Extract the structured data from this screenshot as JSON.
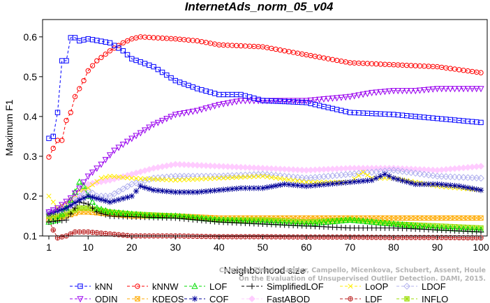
{
  "chart_data": {
    "type": "line",
    "title": "InternetAds_norm_05_v04",
    "xlabel": "Neighborhood size",
    "ylabel": "Maximum F1",
    "xlim": [
      1,
      100
    ],
    "ylim": [
      0.07,
      0.64
    ],
    "xticks": [
      1,
      10,
      20,
      30,
      40,
      50,
      60,
      70,
      80,
      90,
      100
    ],
    "yticks": [
      0.1,
      0.2,
      0.3,
      0.4,
      0.5,
      0.6
    ],
    "grid": false,
    "legend_position": "bottom",
    "watermark": [
      "Campos, Zimek, Sander, Campello, Micenkova, Schubert, Assent, Houle",
      "On the Evaluation of Unsupervised Outlier Detection. DAMI, 2015."
    ],
    "series": [
      {
        "name": "kNN",
        "color": "#0000ff",
        "marker": "square",
        "points": [
          [
            1,
            0.345
          ],
          [
            2,
            0.35
          ],
          [
            3,
            0.41
          ],
          [
            4,
            0.54
          ],
          [
            5,
            0.54
          ],
          [
            6,
            0.598
          ],
          [
            7,
            0.598
          ],
          [
            8,
            0.59
          ],
          [
            10,
            0.595
          ],
          [
            15,
            0.585
          ],
          [
            18,
            0.565
          ],
          [
            20,
            0.545
          ],
          [
            25,
            0.525
          ],
          [
            30,
            0.49
          ],
          [
            35,
            0.47
          ],
          [
            40,
            0.455
          ],
          [
            45,
            0.455
          ],
          [
            50,
            0.44
          ],
          [
            60,
            0.435
          ],
          [
            70,
            0.41
          ],
          [
            80,
            0.405
          ],
          [
            90,
            0.395
          ],
          [
            100,
            0.385
          ]
        ]
      },
      {
        "name": "kNNW",
        "color": "#ff0000",
        "marker": "circle",
        "points": [
          [
            1,
            0.298
          ],
          [
            2,
            0.32
          ],
          [
            3,
            0.34
          ],
          [
            4,
            0.34
          ],
          [
            5,
            0.39
          ],
          [
            6,
            0.41
          ],
          [
            7,
            0.45
          ],
          [
            8,
            0.47
          ],
          [
            9,
            0.49
          ],
          [
            10,
            0.515
          ],
          [
            12,
            0.54
          ],
          [
            15,
            0.565
          ],
          [
            18,
            0.585
          ],
          [
            20,
            0.595
          ],
          [
            22,
            0.6
          ],
          [
            25,
            0.598
          ],
          [
            30,
            0.595
          ],
          [
            35,
            0.59
          ],
          [
            40,
            0.58
          ],
          [
            50,
            0.575
          ],
          [
            60,
            0.555
          ],
          [
            70,
            0.535
          ],
          [
            80,
            0.53
          ],
          [
            90,
            0.525
          ],
          [
            100,
            0.51
          ]
        ]
      },
      {
        "name": "LOF",
        "color": "#00dd00",
        "marker": "triangle-up",
        "points": [
          [
            1,
            0.135
          ],
          [
            3,
            0.14
          ],
          [
            5,
            0.17
          ],
          [
            7,
            0.21
          ],
          [
            8,
            0.235
          ],
          [
            9,
            0.225
          ],
          [
            10,
            0.2
          ],
          [
            12,
            0.17
          ],
          [
            15,
            0.16
          ],
          [
            20,
            0.155
          ],
          [
            25,
            0.15
          ],
          [
            30,
            0.15
          ],
          [
            40,
            0.14
          ],
          [
            50,
            0.135
          ],
          [
            60,
            0.13
          ],
          [
            70,
            0.14
          ],
          [
            80,
            0.13
          ],
          [
            90,
            0.12
          ],
          [
            100,
            0.115
          ]
        ]
      },
      {
        "name": "SimplifiedLOF",
        "color": "#000000",
        "marker": "plus",
        "points": [
          [
            1,
            0.135
          ],
          [
            5,
            0.14
          ],
          [
            8,
            0.185
          ],
          [
            10,
            0.18
          ],
          [
            12,
            0.16
          ],
          [
            15,
            0.15
          ],
          [
            20,
            0.148
          ],
          [
            30,
            0.145
          ],
          [
            40,
            0.135
          ],
          [
            50,
            0.13
          ],
          [
            60,
            0.125
          ],
          [
            70,
            0.12
          ],
          [
            80,
            0.12
          ],
          [
            90,
            0.115
          ],
          [
            100,
            0.11
          ]
        ]
      },
      {
        "name": "LoOP",
        "color": "#ffee00",
        "marker": "x",
        "points": [
          [
            1,
            0.2
          ],
          [
            3,
            0.17
          ],
          [
            6,
            0.19
          ],
          [
            8,
            0.215
          ],
          [
            10,
            0.22
          ],
          [
            13,
            0.245
          ],
          [
            15,
            0.25
          ],
          [
            20,
            0.245
          ],
          [
            30,
            0.24
          ],
          [
            40,
            0.245
          ],
          [
            50,
            0.25
          ],
          [
            60,
            0.235
          ],
          [
            70,
            0.235
          ],
          [
            73,
            0.26
          ],
          [
            75,
            0.245
          ],
          [
            80,
            0.245
          ],
          [
            85,
            0.235
          ],
          [
            90,
            0.225
          ],
          [
            100,
            0.215
          ]
        ]
      },
      {
        "name": "LDOF",
        "color": "#b0b0ee",
        "marker": "diamond",
        "points": [
          [
            1,
            0.16
          ],
          [
            5,
            0.17
          ],
          [
            8,
            0.2
          ],
          [
            10,
            0.215
          ],
          [
            12,
            0.2
          ],
          [
            15,
            0.2
          ],
          [
            20,
            0.23
          ],
          [
            25,
            0.245
          ],
          [
            30,
            0.25
          ],
          [
            40,
            0.25
          ],
          [
            50,
            0.255
          ],
          [
            60,
            0.245
          ],
          [
            70,
            0.255
          ],
          [
            80,
            0.265
          ],
          [
            90,
            0.25
          ],
          [
            100,
            0.245
          ]
        ]
      },
      {
        "name": "ODIN",
        "color": "#9900ee",
        "marker": "triangle-down",
        "points": [
          [
            1,
            0.16
          ],
          [
            3,
            0.17
          ],
          [
            6,
            0.195
          ],
          [
            8,
            0.22
          ],
          [
            10,
            0.25
          ],
          [
            13,
            0.28
          ],
          [
            16,
            0.315
          ],
          [
            20,
            0.345
          ],
          [
            25,
            0.38
          ],
          [
            30,
            0.405
          ],
          [
            35,
            0.415
          ],
          [
            40,
            0.43
          ],
          [
            45,
            0.44
          ],
          [
            50,
            0.44
          ],
          [
            60,
            0.44
          ],
          [
            65,
            0.445
          ],
          [
            70,
            0.45
          ],
          [
            75,
            0.46
          ],
          [
            80,
            0.465
          ],
          [
            85,
            0.465
          ],
          [
            90,
            0.47
          ],
          [
            100,
            0.47
          ]
        ]
      },
      {
        "name": "KDEOS",
        "color": "#ffaa00",
        "marker": "square-x",
        "points": [
          [
            1,
            0.14
          ],
          [
            5,
            0.15
          ],
          [
            8,
            0.16
          ],
          [
            10,
            0.16
          ],
          [
            15,
            0.155
          ],
          [
            20,
            0.15
          ],
          [
            30,
            0.15
          ],
          [
            40,
            0.145
          ],
          [
            50,
            0.145
          ],
          [
            60,
            0.145
          ],
          [
            70,
            0.145
          ],
          [
            80,
            0.145
          ],
          [
            90,
            0.145
          ],
          [
            100,
            0.145
          ]
        ]
      },
      {
        "name": "COF",
        "color": "#000099",
        "marker": "star",
        "points": [
          [
            1,
            0.155
          ],
          [
            5,
            0.17
          ],
          [
            8,
            0.19
          ],
          [
            10,
            0.2
          ],
          [
            15,
            0.185
          ],
          [
            20,
            0.2
          ],
          [
            22,
            0.225
          ],
          [
            25,
            0.215
          ],
          [
            30,
            0.21
          ],
          [
            35,
            0.21
          ],
          [
            40,
            0.215
          ],
          [
            45,
            0.22
          ],
          [
            50,
            0.22
          ],
          [
            55,
            0.23
          ],
          [
            60,
            0.225
          ],
          [
            65,
            0.23
          ],
          [
            70,
            0.235
          ],
          [
            75,
            0.24
          ],
          [
            78,
            0.255
          ],
          [
            80,
            0.245
          ],
          [
            85,
            0.23
          ],
          [
            90,
            0.23
          ],
          [
            95,
            0.225
          ],
          [
            100,
            0.215
          ]
        ]
      },
      {
        "name": "FastABOD",
        "color": "#ffccff",
        "marker": "diamond-filled",
        "points": [
          [
            1,
            0.14
          ],
          [
            5,
            0.16
          ],
          [
            8,
            0.2
          ],
          [
            10,
            0.23
          ],
          [
            15,
            0.24
          ],
          [
            20,
            0.255
          ],
          [
            25,
            0.27
          ],
          [
            30,
            0.28
          ],
          [
            40,
            0.275
          ],
          [
            50,
            0.27
          ],
          [
            60,
            0.265
          ],
          [
            70,
            0.27
          ],
          [
            80,
            0.27
          ],
          [
            90,
            0.265
          ],
          [
            100,
            0.275
          ]
        ]
      },
      {
        "name": "LDF",
        "color": "#bb2222",
        "marker": "circle-plus",
        "points": [
          [
            1,
            0.14
          ],
          [
            2,
            0.115
          ],
          [
            3,
            0.095
          ],
          [
            5,
            0.1
          ],
          [
            7,
            0.11
          ],
          [
            10,
            0.11
          ],
          [
            15,
            0.105
          ],
          [
            20,
            0.1
          ],
          [
            30,
            0.1
          ],
          [
            40,
            0.098
          ],
          [
            50,
            0.098
          ],
          [
            60,
            0.097
          ],
          [
            70,
            0.097
          ],
          [
            80,
            0.096
          ],
          [
            90,
            0.096
          ],
          [
            100,
            0.095
          ]
        ]
      },
      {
        "name": "INFLO",
        "color": "#99dd00",
        "marker": "square-star",
        "points": [
          [
            1,
            0.15
          ],
          [
            4,
            0.15
          ],
          [
            8,
            0.17
          ],
          [
            10,
            0.17
          ],
          [
            15,
            0.16
          ],
          [
            20,
            0.155
          ],
          [
            30,
            0.15
          ],
          [
            40,
            0.14
          ],
          [
            50,
            0.14
          ],
          [
            60,
            0.135
          ],
          [
            70,
            0.14
          ],
          [
            80,
            0.13
          ],
          [
            90,
            0.125
          ],
          [
            100,
            0.12
          ]
        ]
      }
    ]
  }
}
